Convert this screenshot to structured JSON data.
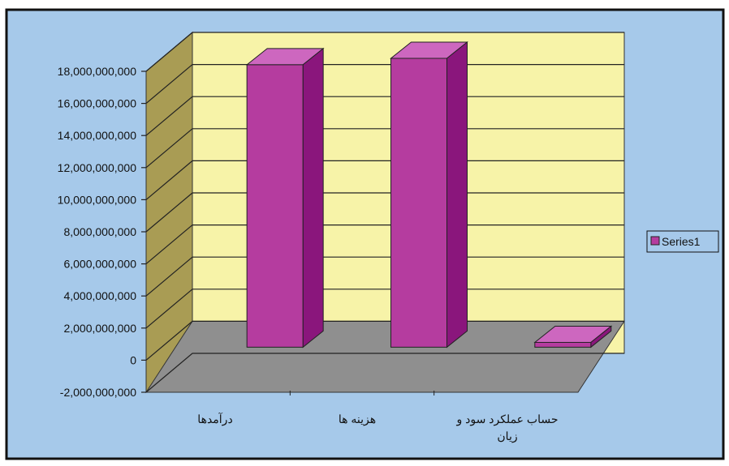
{
  "chart_data": {
    "type": "bar",
    "title": "",
    "xlabel": "",
    "ylabel": "",
    "ylim": [
      -2000000000,
      18000000000
    ],
    "y_ticks": [
      "-2,000,000,000",
      "0",
      "2,000,000,000",
      "4,000,000,000",
      "6,000,000,000",
      "8,000,000,000",
      "10,000,000,000",
      "12,000,000,000",
      "14,000,000,000",
      "16,000,000,000",
      "18,000,000,000"
    ],
    "categories": [
      [
        "درآمدها"
      ],
      [
        "هزینه ها"
      ],
      [
        "حساب عملکرد سود و",
        "زیان"
      ]
    ],
    "series": [
      {
        "name": "Series1",
        "values": [
          17600000000,
          18000000000,
          300000000
        ]
      }
    ],
    "grid": true,
    "legend": "right",
    "style": "3d"
  },
  "colors": {
    "chart_area": "#a6c9ea",
    "back_wall": "#f7f3a8",
    "side_wall": "#a99c54",
    "floor": "#8f8f8f",
    "bar_front": "#b53c9f",
    "bar_side": "#8a167c",
    "bar_top": "#cd67bf",
    "border": "#111111"
  }
}
